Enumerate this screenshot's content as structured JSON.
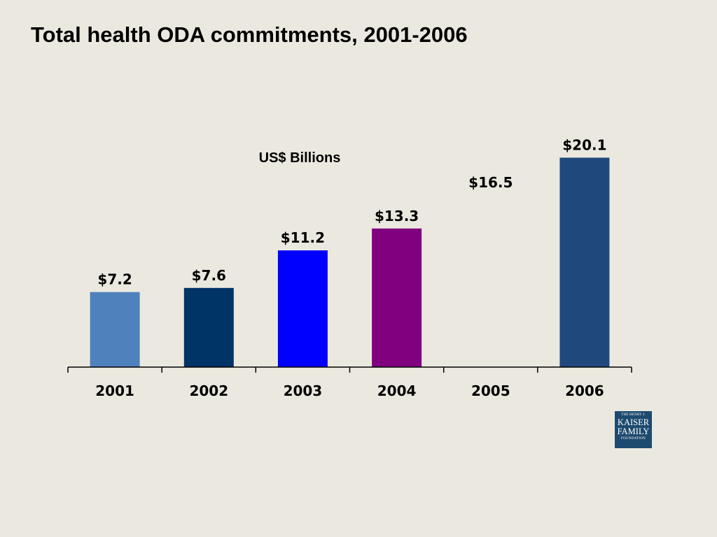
{
  "slide": {
    "title": "Total health ODA commitments, 2001-2006"
  },
  "logo": {
    "line1": "THE HENRY J.",
    "line2": "KAISER",
    "line3": "FAMILY",
    "line4": "FOUNDATION"
  },
  "chart_data": {
    "type": "bar",
    "title": "Total health ODA commitments, 2001-2006",
    "unit_label": "US$ Billions",
    "xlabel": "",
    "ylabel": "",
    "categories": [
      "2001",
      "2002",
      "2003",
      "2004",
      "2005",
      "2006"
    ],
    "values": [
      7.2,
      7.6,
      11.2,
      13.3,
      16.5,
      20.1
    ],
    "data_labels": [
      "$7.2",
      "$7.6",
      "$11.2",
      "$13.3",
      "$16.5",
      "$20.1"
    ],
    "bar_colors": [
      "#4f81bd",
      "#003366",
      "#0000ff",
      "#800080",
      null,
      "#1f497d"
    ],
    "ylim": [
      0,
      21
    ],
    "grid": false,
    "legend": "none"
  }
}
